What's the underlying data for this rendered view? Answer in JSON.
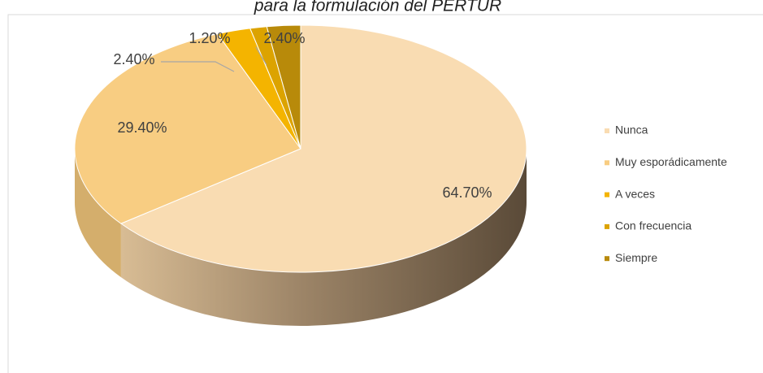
{
  "chart_data": {
    "type": "pie",
    "title": "para la formulación del PERTUR",
    "categories": [
      "Nunca",
      "Muy esporádicamente",
      "A veces",
      "Con frecuencia",
      "Siempre"
    ],
    "values": [
      64.7,
      29.4,
      2.4,
      1.2,
      2.4
    ],
    "value_labels": [
      "64.70%",
      "29.40%",
      "2.40%",
      "1.20%",
      "2.40%"
    ],
    "colors": [
      "#f9dcb2",
      "#f8cd82",
      "#f4b400",
      "#dca300",
      "#b88a0a"
    ],
    "legend": "right"
  }
}
